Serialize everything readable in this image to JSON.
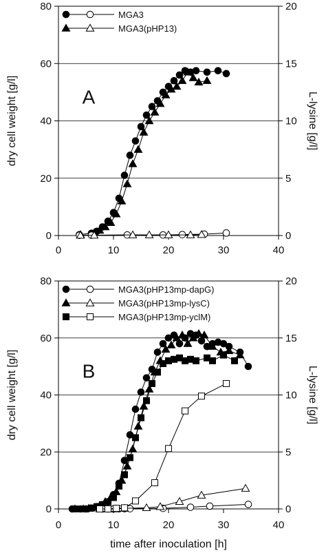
{
  "chart_data": [
    {
      "type": "line",
      "panel_label": "A",
      "xlabel": "",
      "ylabel": "dry cell weight [g/l]",
      "y2label": "L-lysine [g/l]",
      "xlim": [
        0,
        40
      ],
      "ylim": [
        0,
        80
      ],
      "y2lim": [
        0,
        20
      ],
      "xticks": [
        0,
        10,
        20,
        30,
        40
      ],
      "yticks": [
        0,
        20,
        40,
        60,
        80
      ],
      "y2ticks": [
        0,
        5,
        10,
        15,
        20
      ],
      "grid": "horizontal",
      "legend_position": "top-left",
      "legend": [
        {
          "label": "MGA3",
          "filled_marker": "circle",
          "open_marker": "circle"
        },
        {
          "label": "MGA3(pHP13)",
          "filled_marker": "triangle",
          "open_marker": "triangle"
        }
      ],
      "series": [
        {
          "marker": "circle",
          "filled": true,
          "axis": "left",
          "x": [
            3.8,
            6,
            7,
            8,
            9,
            10,
            11,
            12,
            13,
            14,
            15,
            16,
            17,
            18,
            19,
            20,
            21,
            22,
            23,
            24,
            25,
            27,
            29,
            30.5
          ],
          "y": [
            0.3,
            0.8,
            1.5,
            3,
            5,
            8,
            13,
            21,
            28,
            33,
            38,
            42,
            45,
            47,
            50,
            52,
            54,
            56,
            57.5,
            57,
            57.5,
            57,
            57.5,
            56.5
          ]
        },
        {
          "marker": "triangle",
          "filled": true,
          "axis": "left",
          "x": [
            4,
            6.5,
            7.5,
            8.5,
            9.5,
            10.5,
            11.5,
            12.5,
            13.5,
            14.5,
            15.5,
            16.5,
            17.5,
            18.5,
            19.5,
            20.5,
            21.5,
            22.5,
            23.5,
            24.5,
            25.5,
            27
          ],
          "y": [
            0.3,
            1,
            1.8,
            3,
            4.5,
            7.5,
            12,
            18,
            25,
            30,
            36,
            40,
            43,
            46,
            49,
            51,
            52,
            54,
            57,
            55,
            53.5,
            54
          ]
        },
        {
          "marker": "circle",
          "filled": false,
          "axis": "right",
          "x": [
            3.8,
            6,
            12.5,
            19,
            22.5,
            26.5,
            30.5
          ],
          "y": [
            0.02,
            0.03,
            0.05,
            0.05,
            0.08,
            0.12,
            0.22
          ]
        },
        {
          "marker": "triangle",
          "filled": false,
          "axis": "right",
          "x": [
            4,
            6.5,
            13.5,
            16.5,
            20,
            24,
            26
          ],
          "y": [
            0.02,
            0.02,
            0.05,
            0.05,
            0.05,
            0.05,
            0.08
          ]
        }
      ]
    },
    {
      "type": "line",
      "panel_label": "B",
      "xlabel": "time after inoculation [h]",
      "ylabel": "dry cell weight [g/l]",
      "y2label": "L-lysine [g/l]",
      "xlim": [
        0,
        40
      ],
      "ylim": [
        0,
        80
      ],
      "y2lim": [
        0,
        20
      ],
      "xticks": [
        0,
        10,
        20,
        30,
        40
      ],
      "yticks": [
        0,
        20,
        40,
        60,
        80
      ],
      "y2ticks": [
        0,
        5,
        10,
        15,
        20
      ],
      "grid": "horizontal",
      "legend_position": "top-left",
      "legend": [
        {
          "label": "MGA3(pHP13mp-dapG)",
          "filled_marker": "circle",
          "open_marker": "circle"
        },
        {
          "label": "MGA3(pHP13mp-lysC)",
          "filled_marker": "triangle",
          "open_marker": "triangle"
        },
        {
          "label": "MGA3(pHP13mp-yclM)",
          "filled_marker": "square",
          "open_marker": "square"
        }
      ],
      "series": [
        {
          "marker": "circle",
          "filled": true,
          "axis": "left",
          "x": [
            2.5,
            4,
            5,
            6,
            7,
            8,
            9,
            10,
            11,
            12,
            13,
            14,
            15,
            16,
            17,
            18,
            19,
            20,
            21,
            22,
            23,
            24,
            25,
            26,
            27,
            28,
            29,
            30,
            31,
            33,
            34.5
          ],
          "y": [
            0,
            0,
            0,
            0.3,
            0.8,
            1.5,
            2.5,
            5,
            9,
            17,
            26,
            35,
            41,
            46,
            49,
            55,
            58,
            60,
            61,
            58,
            60,
            61.5,
            61,
            59,
            57,
            58,
            58.5,
            58,
            57,
            55,
            50
          ]
        },
        {
          "marker": "triangle",
          "filled": true,
          "axis": "left",
          "x": [
            3,
            4.5,
            5.5,
            6.5,
            7.5,
            8.5,
            9.5,
            10.5,
            11.5,
            12.5,
            13.5,
            14.5,
            15.5,
            16.5,
            17.5,
            18.5,
            19.5,
            20.5,
            21.5,
            22.5,
            23.5,
            24.5,
            25.5,
            26.5,
            28,
            29.5,
            31,
            33
          ],
          "y": [
            0,
            0,
            0.2,
            0.5,
            1.2,
            2.5,
            4,
            6,
            10,
            15,
            21,
            29,
            36,
            42,
            48,
            52,
            56,
            57.5,
            60,
            61,
            58,
            60,
            61.5,
            61,
            57,
            55,
            55.5,
            54
          ]
        },
        {
          "marker": "square",
          "filled": true,
          "axis": "left",
          "x": [
            3,
            5,
            6,
            7,
            8,
            9,
            10,
            11,
            12,
            13,
            14,
            15,
            16,
            17,
            18,
            19,
            20,
            21,
            22,
            23,
            24,
            25,
            27,
            28,
            30,
            32
          ],
          "y": [
            0,
            0,
            0.3,
            0.8,
            1.5,
            2.5,
            4,
            8,
            12,
            18,
            25,
            32,
            38,
            44,
            48,
            51,
            52,
            52.5,
            53,
            52,
            52.5,
            52,
            53,
            52,
            54,
            52
          ]
        },
        {
          "marker": "circle",
          "filled": false,
          "axis": "right",
          "x": [
            8,
            9,
            10,
            11,
            12,
            13,
            19,
            24,
            27.5,
            34.5
          ],
          "y": [
            0,
            0,
            0,
            0.02,
            0.02,
            0.02,
            0.05,
            0.15,
            0.25,
            0.4
          ]
        },
        {
          "marker": "triangle",
          "filled": false,
          "axis": "right",
          "x": [
            7.5,
            9,
            10.5,
            12,
            16,
            18.5,
            22,
            26,
            34
          ],
          "y": [
            0,
            0,
            0,
            0.05,
            0.1,
            0.2,
            0.65,
            1.2,
            1.8
          ]
        },
        {
          "marker": "square",
          "filled": false,
          "axis": "right",
          "x": [
            7.5,
            9,
            10.5,
            12,
            14,
            17.5,
            20,
            23,
            26,
            30.5
          ],
          "y": [
            0,
            0,
            0.05,
            0.1,
            0.7,
            2.3,
            5.3,
            8.6,
            9.9,
            11
          ]
        }
      ]
    }
  ]
}
